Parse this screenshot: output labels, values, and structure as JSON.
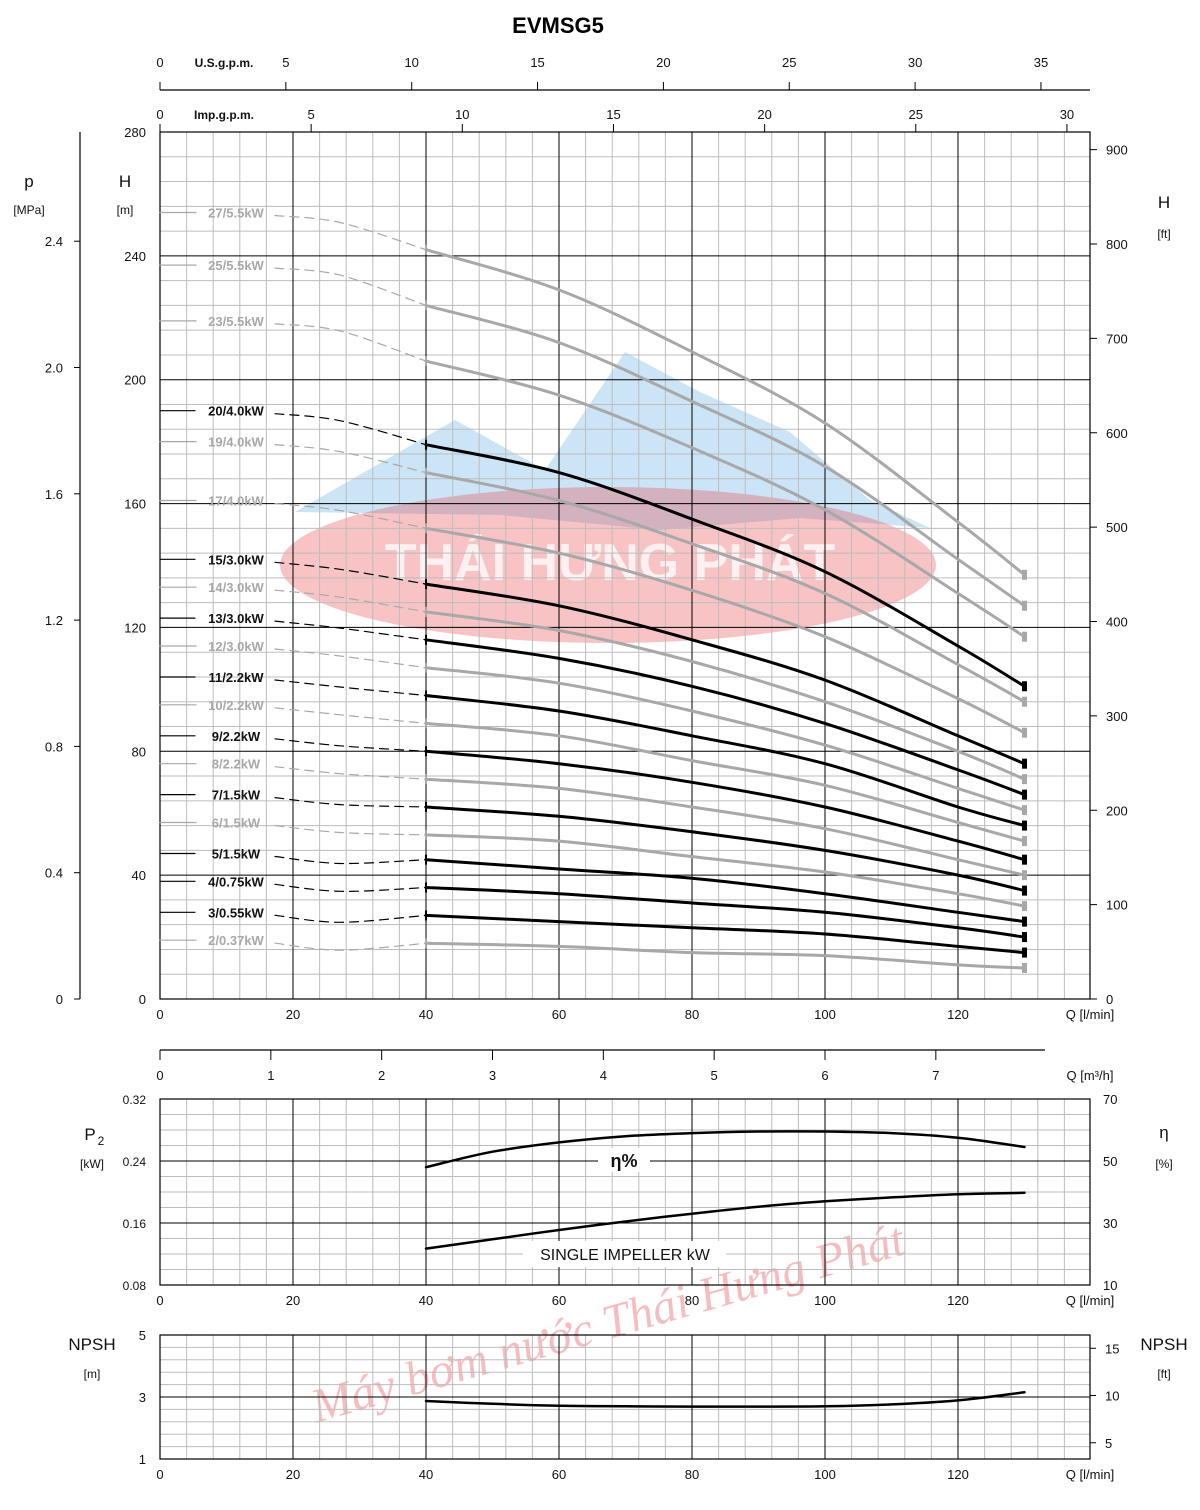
{
  "title": "EVMSG5",
  "watermark": {
    "logo_text": "THÁI HƯNG PHÁT",
    "diagonal_text": "Máy bơm nước Thái Hưng Phát"
  },
  "colors": {
    "bold_curve": "#000000",
    "light_curve": "#a8a8a8",
    "grid_major": "#000000",
    "grid_minor": "#bdbdbd",
    "watermark_red": "#e8444c",
    "watermark_blue": "#8cc6ee"
  },
  "chart_data": [
    {
      "type": "line",
      "title": "EVMSG5",
      "xlabel": "Q [l/min]",
      "xlim": [
        0,
        140
      ],
      "x_ticks": [
        "0",
        "20",
        "40",
        "60",
        "80",
        "100",
        "120"
      ],
      "ylabel": "H",
      "ylabel_unit": "[m]",
      "ylim": [
        0,
        280
      ],
      "y_ticks": [
        "0",
        "40",
        "80",
        "120",
        "160",
        "200",
        "240",
        "280"
      ],
      "y_left_secondary": {
        "label": "p",
        "unit": "[MPa]",
        "ticks": [
          "0",
          "0.4",
          "0.8",
          "1.2",
          "1.6",
          "2.0",
          "2.4"
        ]
      },
      "y_right": {
        "label": "H",
        "unit": "[ft]",
        "ticks": [
          "0",
          "100",
          "200",
          "300",
          "400",
          "500",
          "600",
          "700",
          "800",
          "900"
        ]
      },
      "x_top_1": {
        "label": "U.S.g.p.m.",
        "ticks": [
          "0",
          "5",
          "10",
          "15",
          "20",
          "25",
          "30",
          "35"
        ]
      },
      "x_top_2": {
        "label": "Imp.g.p.m.",
        "ticks": [
          "0",
          "5",
          "10",
          "15",
          "20",
          "25",
          "30"
        ]
      },
      "x_bottom_2": {
        "label": "Q [m³/h]",
        "ticks": [
          "0",
          "1",
          "2",
          "3",
          "4",
          "5",
          "6",
          "7"
        ]
      },
      "x": [
        40,
        60,
        80,
        100,
        120,
        130
      ],
      "series": [
        {
          "name": "27/5.5kW",
          "bold": false,
          "start_h": 254,
          "values": [
            242,
            229,
            209,
            186,
            154,
            137
          ]
        },
        {
          "name": "25/5.5kW",
          "bold": false,
          "start_h": 237,
          "values": [
            224,
            212,
            193,
            172,
            142,
            127
          ]
        },
        {
          "name": "23/5.5kW",
          "bold": false,
          "start_h": 219,
          "values": [
            206,
            195,
            178,
            158,
            131,
            117
          ]
        },
        {
          "name": "20/4.0kW",
          "bold": true,
          "start_h": 190,
          "values": [
            179,
            170,
            155,
            138,
            114,
            101
          ]
        },
        {
          "name": "19/4.0kW",
          "bold": false,
          "start_h": 180,
          "values": [
            170,
            161,
            147,
            131,
            108,
            96
          ]
        },
        {
          "name": "17/4.0kW",
          "bold": false,
          "start_h": 161,
          "values": [
            152,
            144,
            132,
            117,
            97,
            86
          ]
        },
        {
          "name": "15/3.0kW",
          "bold": true,
          "start_h": 142,
          "values": [
            134,
            127,
            116,
            103,
            85,
            76
          ]
        },
        {
          "name": "14/3.0kW",
          "bold": false,
          "start_h": 133,
          "values": [
            125,
            119,
            109,
            96,
            80,
            71
          ]
        },
        {
          "name": "13/3.0kW",
          "bold": true,
          "start_h": 123,
          "values": [
            116,
            110,
            101,
            89,
            74,
            66
          ]
        },
        {
          "name": "12/3.0kW",
          "bold": false,
          "start_h": 114,
          "values": [
            107,
            102,
            93,
            82,
            68,
            61
          ]
        },
        {
          "name": "11/2.2kW",
          "bold": true,
          "start_h": 104,
          "values": [
            98,
            93,
            85,
            76,
            62,
            56
          ]
        },
        {
          "name": "10/2.2kW",
          "bold": false,
          "start_h": 95,
          "values": [
            89,
            85,
            77,
            69,
            57,
            51
          ]
        },
        {
          "name": "9/2.2kW",
          "bold": true,
          "start_h": 85,
          "values": [
            80,
            76,
            70,
            62,
            51,
            45
          ]
        },
        {
          "name": "8/2.2kW",
          "bold": false,
          "start_h": 76,
          "values": [
            71,
            68,
            62,
            55,
            45,
            40
          ]
        },
        {
          "name": "7/1.5kW",
          "bold": true,
          "start_h": 66,
          "values": [
            62,
            59,
            54,
            48,
            40,
            35
          ]
        },
        {
          "name": "6/1.5kW",
          "bold": false,
          "start_h": 57,
          "values": [
            53,
            51,
            46,
            41,
            34,
            30
          ]
        },
        {
          "name": "5/1.5kW",
          "bold": true,
          "start_h": 47,
          "values": [
            45,
            42,
            39,
            34,
            28,
            25
          ]
        },
        {
          "name": "4/0.75kW",
          "bold": true,
          "start_h": 38,
          "values": [
            36,
            34,
            31,
            28,
            23,
            20
          ]
        },
        {
          "name": "3/0.55kW",
          "bold": true,
          "start_h": 28,
          "values": [
            27,
            25,
            23,
            21,
            17,
            15
          ]
        },
        {
          "name": "2/0.37kW",
          "bold": false,
          "start_h": 19,
          "values": [
            18,
            17,
            15,
            14,
            11,
            10
          ]
        }
      ]
    },
    {
      "type": "line",
      "xlabel": "Q [l/min]",
      "xlim": [
        0,
        140
      ],
      "x_ticks": [
        "0",
        "20",
        "40",
        "60",
        "80",
        "100",
        "120"
      ],
      "ylabel": "P",
      "ylabel_sub": "2",
      "ylabel_unit": "[kW]",
      "ylim": [
        0.08,
        0.32
      ],
      "y_ticks": [
        "0.08",
        "0.16",
        "0.24",
        "0.32"
      ],
      "y_right": {
        "label": "η",
        "unit": "[%]",
        "ylim": [
          10,
          70
        ],
        "ticks": [
          "10",
          "30",
          "50",
          "70"
        ]
      },
      "series": [
        {
          "name": "η%",
          "axis": "right",
          "x": [
            40,
            50,
            60,
            70,
            80,
            90,
            100,
            110,
            120,
            130
          ],
          "values": [
            48,
            53,
            56,
            58,
            59,
            59.5,
            59.5,
            59,
            57.5,
            54.5
          ]
        },
        {
          "name": "SINGLE IMPELLER kW",
          "axis": "left",
          "x": [
            40,
            50,
            60,
            70,
            80,
            90,
            100,
            110,
            120,
            130
          ],
          "values": [
            0.127,
            0.139,
            0.151,
            0.162,
            0.172,
            0.181,
            0.188,
            0.193,
            0.197,
            0.199
          ]
        }
      ]
    },
    {
      "type": "line",
      "xlabel": "Q [l/min]",
      "xlim": [
        0,
        140
      ],
      "x_ticks": [
        "0",
        "20",
        "40",
        "60",
        "80",
        "100",
        "120"
      ],
      "ylabel": "NPSH",
      "ylabel_unit": "[m]",
      "ylim": [
        1,
        5
      ],
      "y_ticks": [
        "1",
        "3",
        "5"
      ],
      "y_right": {
        "label": "NPSH",
        "unit": "[ft]",
        "ticks": [
          "5",
          "10",
          "15"
        ]
      },
      "series": [
        {
          "name": "NPSH",
          "x": [
            40,
            50,
            60,
            70,
            80,
            90,
            100,
            110,
            120,
            130
          ],
          "values": [
            2.87,
            2.78,
            2.72,
            2.7,
            2.69,
            2.69,
            2.7,
            2.76,
            2.89,
            3.15
          ]
        }
      ]
    }
  ]
}
